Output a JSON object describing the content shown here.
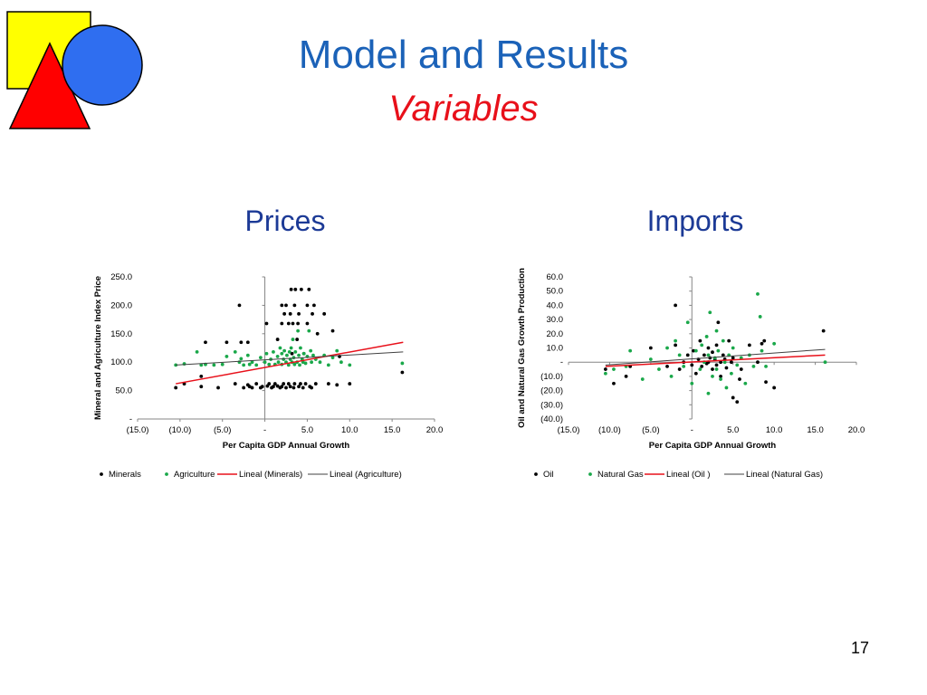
{
  "slide": {
    "title": "Model and Results",
    "subtitle": "Variables",
    "page_number": "17",
    "colors": {
      "title": "#1b62b8",
      "subtitle": "#e8101a",
      "heading": "#1c3a96",
      "logo_square": "#ffff00",
      "logo_circle": "#2f6ef0",
      "logo_triangle": "#ff0000"
    },
    "logo_icons": [
      "square-shape-icon",
      "circle-shape-icon",
      "triangle-shape-icon"
    ]
  },
  "headings": {
    "prices": "Prices",
    "imports": "Imports"
  },
  "chart_data": [
    {
      "type": "scatter",
      "id": "prices",
      "title": "",
      "xlabel": "Per Capita GDP Annual Growth",
      "ylabel": "Mineral and Agriculture Index Price",
      "xlim": [
        -15,
        20
      ],
      "ylim": [
        0,
        250
      ],
      "x_ticks": [
        -15,
        -10,
        -5,
        0,
        5,
        10,
        15,
        20
      ],
      "x_tick_labels": [
        "(15.0)",
        "(10.0)",
        "(5.0)",
        "-",
        "5.0",
        "10.0",
        "15.0",
        "20.0"
      ],
      "y_ticks": [
        0,
        50,
        100,
        150,
        200,
        250
      ],
      "y_tick_labels": [
        "-",
        "50.0",
        "100.0",
        "150.0",
        "200.0",
        "250.0"
      ],
      "grid": false,
      "legend_position": "bottom",
      "series": [
        {
          "name": "Minerals",
          "color": "#000000",
          "points": [
            [
              -10.5,
              55
            ],
            [
              -9.5,
              62
            ],
            [
              -7.5,
              57
            ],
            [
              -7.5,
              75
            ],
            [
              -7,
              135
            ],
            [
              -5.5,
              55
            ],
            [
              -4.5,
              135
            ],
            [
              -3.5,
              62
            ],
            [
              -3,
              200
            ],
            [
              -2.8,
              135
            ],
            [
              -2.5,
              55
            ],
            [
              -2,
              135
            ],
            [
              -2,
              60
            ],
            [
              -1.8,
              57
            ],
            [
              -1.5,
              55
            ],
            [
              -1,
              62
            ],
            [
              -0.5,
              55
            ],
            [
              -0.3,
              57
            ],
            [
              0.2,
              168
            ],
            [
              0.3,
              58
            ],
            [
              0.5,
              62
            ],
            [
              0.8,
              55
            ],
            [
              1,
              57
            ],
            [
              1.2,
              62
            ],
            [
              1.5,
              58
            ],
            [
              1.5,
              140
            ],
            [
              1.8,
              55
            ],
            [
              2,
              57
            ],
            [
              2,
              168
            ],
            [
              2,
              200
            ],
            [
              2.2,
              62
            ],
            [
              2.3,
              185
            ],
            [
              2.5,
              55
            ],
            [
              2.5,
              200
            ],
            [
              2.8,
              62
            ],
            [
              2.8,
              168
            ],
            [
              3,
              57
            ],
            [
              3,
              185
            ],
            [
              3.1,
              228
            ],
            [
              3.2,
              115
            ],
            [
              3.3,
              168
            ],
            [
              3.4,
              55
            ],
            [
              3.5,
              62
            ],
            [
              3.5,
              200
            ],
            [
              3.6,
              228
            ],
            [
              3.8,
              140
            ],
            [
              3.9,
              168
            ],
            [
              4,
              57
            ],
            [
              4,
              185
            ],
            [
              4.2,
              62
            ],
            [
              4.3,
              228
            ],
            [
              4.5,
              55
            ],
            [
              4.6,
              115
            ],
            [
              4.8,
              62
            ],
            [
              5,
              200
            ],
            [
              5,
              168
            ],
            [
              5.2,
              228
            ],
            [
              5.3,
              57
            ],
            [
              5.5,
              55
            ],
            [
              5.6,
              185
            ],
            [
              5.8,
              200
            ],
            [
              6,
              62
            ],
            [
              6.2,
              150
            ],
            [
              7,
              185
            ],
            [
              7.5,
              62
            ],
            [
              8,
              155
            ],
            [
              8.5,
              60
            ],
            [
              8.8,
              110
            ],
            [
              10,
              62
            ],
            [
              16.2,
              82
            ]
          ]
        },
        {
          "name": "Agriculture",
          "color": "#1aa84a",
          "points": [
            [
              -10.5,
              95
            ],
            [
              -9.5,
              97
            ],
            [
              -8,
              118
            ],
            [
              -7.5,
              95
            ],
            [
              -7,
              96
            ],
            [
              -6,
              95
            ],
            [
              -5,
              96
            ],
            [
              -4.5,
              110
            ],
            [
              -3.5,
              118
            ],
            [
              -3,
              100
            ],
            [
              -2.8,
              106
            ],
            [
              -2.5,
              95
            ],
            [
              -2,
              112
            ],
            [
              -1.8,
              96
            ],
            [
              -1.5,
              100
            ],
            [
              -1,
              95
            ],
            [
              -0.5,
              108
            ],
            [
              0,
              100
            ],
            [
              0.2,
              115
            ],
            [
              0.5,
              96
            ],
            [
              0.7,
              105
            ],
            [
              1,
              118
            ],
            [
              1.2,
              96
            ],
            [
              1.5,
              110
            ],
            [
              1.6,
              100
            ],
            [
              1.8,
              125
            ],
            [
              2,
              96
            ],
            [
              2,
              115
            ],
            [
              2.2,
              105
            ],
            [
              2.3,
              120
            ],
            [
              2.5,
              100
            ],
            [
              2.6,
              112
            ],
            [
              2.8,
              95
            ],
            [
              2.9,
              118
            ],
            [
              3,
              105
            ],
            [
              3.1,
              125
            ],
            [
              3.2,
              100
            ],
            [
              3.3,
              140
            ],
            [
              3.4,
              108
            ],
            [
              3.5,
              96
            ],
            [
              3.6,
              118
            ],
            [
              3.8,
              100
            ],
            [
              3.9,
              155
            ],
            [
              4,
              112
            ],
            [
              4.1,
              95
            ],
            [
              4.2,
              125
            ],
            [
              4.4,
              105
            ],
            [
              4.5,
              100
            ],
            [
              4.6,
              115
            ],
            [
              4.8,
              98
            ],
            [
              5,
              110
            ],
            [
              5.2,
              155
            ],
            [
              5.4,
              120
            ],
            [
              5.5,
              100
            ],
            [
              5.7,
              112
            ],
            [
              6,
              105
            ],
            [
              6.5,
              100
            ],
            [
              7,
              112
            ],
            [
              7.5,
              95
            ],
            [
              8,
              108
            ],
            [
              8.5,
              120
            ],
            [
              9,
              100
            ],
            [
              10,
              95
            ],
            [
              16.2,
              98
            ]
          ]
        },
        {
          "name": "Lineal (Minerals)",
          "kind": "trendline",
          "color": "#e8101a",
          "x": [
            -10.5,
            16.3
          ],
          "y": [
            62,
            135
          ]
        },
        {
          "name": "Lineal (Agriculture)",
          "kind": "trendline",
          "color": "#404040",
          "x": [
            -10.5,
            16.3
          ],
          "y": [
            95,
            118
          ]
        }
      ]
    },
    {
      "type": "scatter",
      "id": "imports",
      "title": "",
      "xlabel": "Per Capita GDP Annual Growth",
      "ylabel": "Oil and Natural Gas Growth Production",
      "xlim": [
        -15,
        20
      ],
      "ylim": [
        -40,
        60
      ],
      "x_ticks": [
        -15,
        -10,
        -5,
        0,
        5,
        10,
        15,
        20
      ],
      "x_tick_labels": [
        "(15.0)",
        "(10.0)",
        "(5.0)",
        "-",
        "5.0",
        "10.0",
        "15.0",
        "20.0"
      ],
      "y_ticks": [
        -40,
        -30,
        -20,
        -10,
        0,
        10,
        20,
        30,
        40,
        50,
        60
      ],
      "y_tick_labels": [
        "(40.0)",
        "(30.0)",
        "(20.0)",
        "(10.0)",
        "-",
        "10.0",
        "20.0",
        "30.0",
        "40.0",
        "50.0",
        "60.0"
      ],
      "grid": false,
      "legend_position": "bottom",
      "series": [
        {
          "name": "Oil",
          "color": "#000000",
          "points": [
            [
              -10.5,
              -5
            ],
            [
              -9.5,
              -15
            ],
            [
              -8,
              -10
            ],
            [
              -7.5,
              -3
            ],
            [
              -5,
              10
            ],
            [
              -3,
              -3
            ],
            [
              -2,
              40
            ],
            [
              -2,
              12
            ],
            [
              -1.5,
              -5
            ],
            [
              -1,
              0
            ],
            [
              -0.5,
              5
            ],
            [
              0,
              -2
            ],
            [
              0.2,
              8
            ],
            [
              0.5,
              -8
            ],
            [
              0.8,
              2
            ],
            [
              1,
              15
            ],
            [
              1.2,
              -3
            ],
            [
              1.5,
              5
            ],
            [
              1.8,
              -1
            ],
            [
              2,
              0
            ],
            [
              2,
              10
            ],
            [
              2.2,
              3
            ],
            [
              2.5,
              -5
            ],
            [
              2.5,
              7
            ],
            [
              2.8,
              2
            ],
            [
              3,
              -2
            ],
            [
              3,
              12
            ],
            [
              3.2,
              28
            ],
            [
              3.5,
              0
            ],
            [
              3.5,
              -10
            ],
            [
              3.8,
              5
            ],
            [
              4,
              2
            ],
            [
              4.2,
              -4
            ],
            [
              4.5,
              15
            ],
            [
              4.8,
              0
            ],
            [
              5,
              -25
            ],
            [
              5,
              3
            ],
            [
              5.5,
              -28
            ],
            [
              5.8,
              -12
            ],
            [
              6,
              -5
            ],
            [
              7,
              12
            ],
            [
              8,
              0
            ],
            [
              8.5,
              13
            ],
            [
              8.8,
              15
            ],
            [
              9,
              -14
            ],
            [
              10,
              -18
            ],
            [
              16,
              22
            ]
          ]
        },
        {
          "name": "Natural Gas",
          "color": "#1aa84a",
          "points": [
            [
              -10.5,
              -8
            ],
            [
              -9.5,
              -5
            ],
            [
              -8,
              -3
            ],
            [
              -7.5,
              8
            ],
            [
              -6,
              -12
            ],
            [
              -5,
              2
            ],
            [
              -4,
              -5
            ],
            [
              -3,
              10
            ],
            [
              -2.5,
              -10
            ],
            [
              -2,
              15
            ],
            [
              -1.5,
              5
            ],
            [
              -1,
              -3
            ],
            [
              -0.5,
              28
            ],
            [
              0,
              -15
            ],
            [
              0.5,
              8
            ],
            [
              1,
              -5
            ],
            [
              1.2,
              12
            ],
            [
              1.5,
              0
            ],
            [
              1.8,
              18
            ],
            [
              2,
              -22
            ],
            [
              2,
              5
            ],
            [
              2.2,
              35
            ],
            [
              2.5,
              -10
            ],
            [
              2.8,
              3
            ],
            [
              3,
              22
            ],
            [
              3,
              -5
            ],
            [
              3.2,
              8
            ],
            [
              3.5,
              -12
            ],
            [
              3.8,
              15
            ],
            [
              4,
              0
            ],
            [
              4.2,
              -18
            ],
            [
              4.5,
              5
            ],
            [
              4.8,
              -8
            ],
            [
              5,
              10
            ],
            [
              5.5,
              -2
            ],
            [
              6,
              3
            ],
            [
              6.5,
              -15
            ],
            [
              7,
              5
            ],
            [
              7.5,
              -3
            ],
            [
              8,
              48
            ],
            [
              8.3,
              32
            ],
            [
              8.5,
              8
            ],
            [
              9,
              -3
            ],
            [
              10,
              13
            ],
            [
              16.2,
              0
            ]
          ]
        },
        {
          "name": "Lineal (Oil )",
          "kind": "trendline",
          "color": "#e8101a",
          "x": [
            -10.5,
            16.2
          ],
          "y": [
            -3,
            5
          ]
        },
        {
          "name": "Lineal (Natural Gas)",
          "kind": "trendline",
          "color": "#404040",
          "x": [
            -10.5,
            16.2
          ],
          "y": [
            -2,
            9
          ]
        }
      ]
    }
  ]
}
